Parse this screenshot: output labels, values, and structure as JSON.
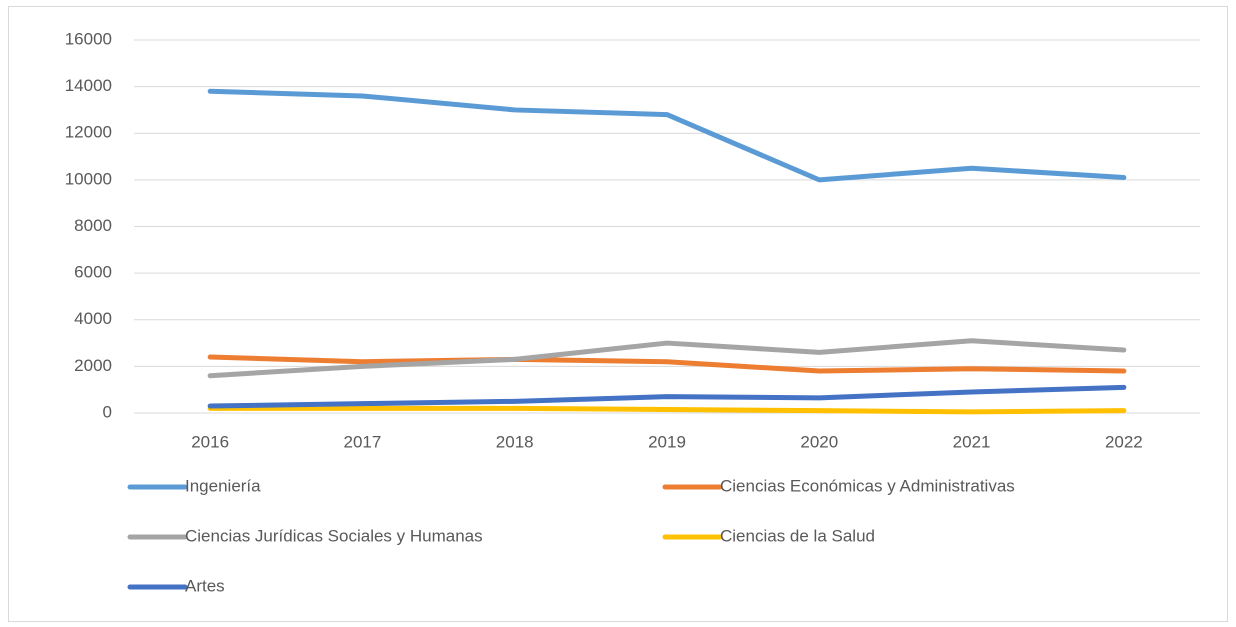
{
  "chart_data": {
    "type": "line",
    "categories": [
      "2016",
      "2017",
      "2018",
      "2019",
      "2020",
      "2021",
      "2022"
    ],
    "series": [
      {
        "name": "Ingeniería",
        "color": "#5b9bd5",
        "values": [
          13800,
          13600,
          13000,
          12800,
          10000,
          10500,
          10100
        ]
      },
      {
        "name": "Ciencias Económicas y Administrativas",
        "color": "#ed7d31",
        "values": [
          2400,
          2200,
          2300,
          2200,
          1800,
          1900,
          1800
        ]
      },
      {
        "name": "Ciencias Jurídicas Sociales y Humanas",
        "color": "#a5a5a5",
        "values": [
          1600,
          2000,
          2300,
          3000,
          2600,
          3100,
          2700
        ]
      },
      {
        "name": "Ciencias de la Salud",
        "color": "#ffc000",
        "values": [
          200,
          200,
          200,
          150,
          100,
          50,
          100
        ]
      },
      {
        "name": "Artes",
        "color": "#4472c4",
        "values": [
          300,
          400,
          500,
          700,
          650,
          900,
          1100
        ]
      }
    ],
    "ylim": [
      0,
      16000
    ],
    "yticks": [
      0,
      2000,
      4000,
      6000,
      8000,
      10000,
      12000,
      14000,
      16000
    ],
    "grid": true,
    "legend": "bottom"
  }
}
